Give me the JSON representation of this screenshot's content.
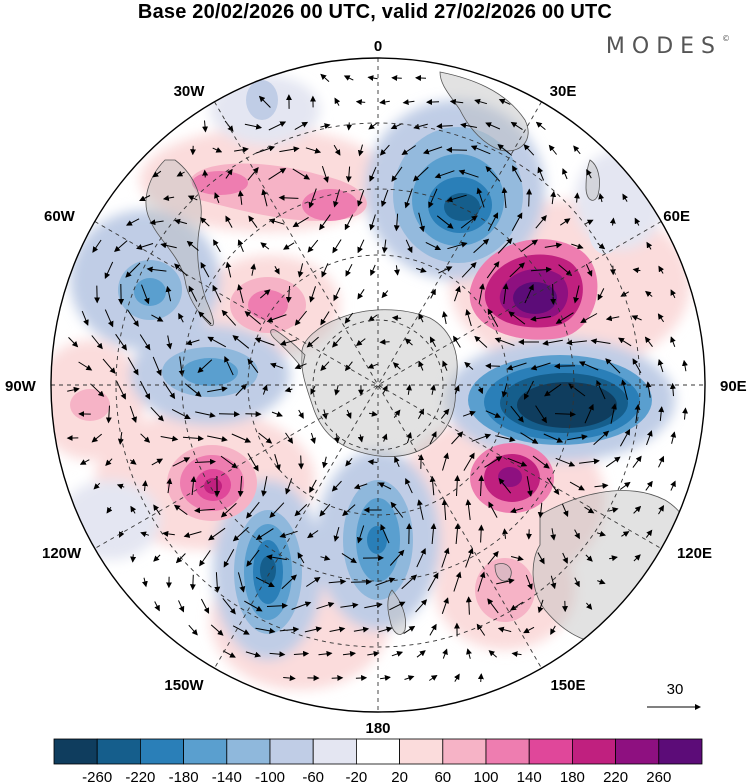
{
  "title": "Base 20/02/2026 00 UTC, valid 27/02/2026 00 UTC",
  "brand": "MODES",
  "brand_mark": "©",
  "longitude_labels": {
    "lon_0": "0",
    "lon_30e": "30E",
    "lon_60e": "60E",
    "lon_90e": "90E",
    "lon_120e": "120E",
    "lon_150e": "150E",
    "lon_180": "180",
    "lon_150w": "150W",
    "lon_120w": "120W",
    "lon_90w": "90W",
    "lon_60w": "60W",
    "lon_30w": "30W"
  },
  "vector_reference": "30",
  "colorbar": {
    "ticks": [
      "-260",
      "-220",
      "-180",
      "-140",
      "-100",
      "-60",
      "-20",
      "20",
      "60",
      "100",
      "140",
      "180",
      "220",
      "260"
    ],
    "colors": [
      "#0f3d5e",
      "#155e8c",
      "#2a7fb8",
      "#5a9fcf",
      "#8fb8dc",
      "#c0cde6",
      "#e4e6f2",
      "#ffffff",
      "#fbdcdc",
      "#f6b3c6",
      "#ee7db0",
      "#e0479a",
      "#c0207f",
      "#8e1080",
      "#5c0c78"
    ]
  },
  "anomaly_centers": [
    {
      "sign": "negative",
      "value": -240,
      "region": "south of Africa"
    },
    {
      "sign": "positive",
      "value": 240,
      "region": "southern Indian Ocean"
    },
    {
      "sign": "negative",
      "value": -280,
      "region": "southern Indian Ocean"
    },
    {
      "sign": "positive",
      "value": 200,
      "region": "south of Australia"
    },
    {
      "sign": "negative",
      "value": -180,
      "region": "Ross Sea"
    },
    {
      "sign": "negative",
      "value": -220,
      "region": "South Pacific"
    },
    {
      "sign": "positive",
      "value": 200,
      "region": "Amundsen Sea"
    },
    {
      "sign": "negative",
      "value": -140,
      "region": "Bellingshausen Sea"
    },
    {
      "sign": "positive",
      "value": 140,
      "region": "Drake Passage"
    },
    {
      "sign": "positive",
      "value": 140,
      "region": "South Atlantic"
    },
    {
      "sign": "negative",
      "value": -100,
      "region": "South America"
    }
  ]
}
